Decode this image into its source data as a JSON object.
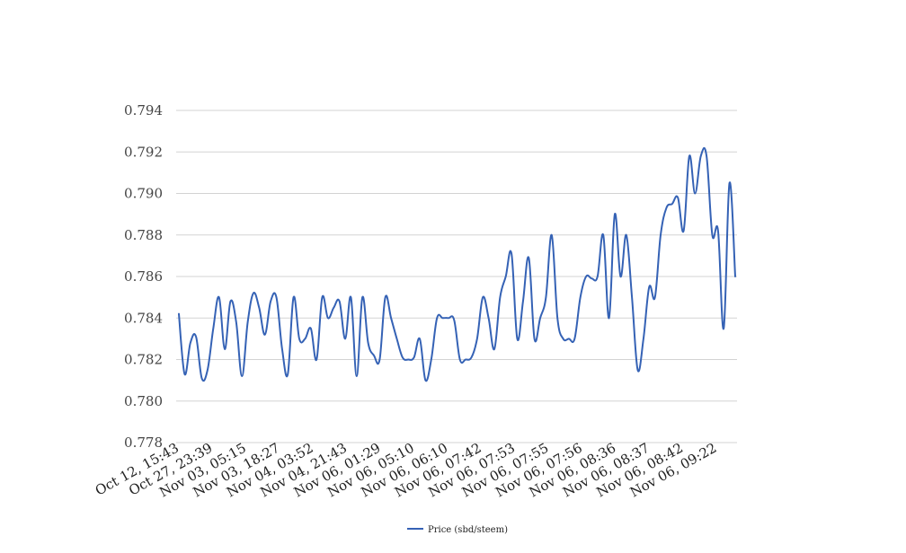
{
  "chart_data": {
    "type": "line",
    "title": "",
    "xlabel": "",
    "ylabel": "",
    "ylim": [
      0.778,
      0.794
    ],
    "yticks": [
      "0.778",
      "0.780",
      "0.782",
      "0.784",
      "0.786",
      "0.788",
      "0.790",
      "0.792",
      "0.794"
    ],
    "grid": true,
    "legend_position": "bottom",
    "x_tick_labels": [
      "Oct 12, 15:43",
      "Oct 27, 23:39",
      "Nov 03, 05:15",
      "Nov 03, 18:27",
      "Nov 04, 03:52",
      "Nov 04, 21:43",
      "Nov 06, 01:29",
      "Nov 06, 05:10",
      "Nov 06, 06:10",
      "Nov 06, 07:42",
      "Nov 06, 07:53",
      "Nov 06, 07:55",
      "Nov 06, 07:56",
      "Nov 06, 08:36",
      "Nov 06, 08:37",
      "Nov 06, 08:42",
      "Nov 06, 09:22"
    ],
    "series": [
      {
        "name": "Price (sbd/steem)",
        "color": "#3562b5",
        "values": [
          0.7842,
          0.7813,
          0.7828,
          0.7831,
          0.7811,
          0.7815,
          0.7835,
          0.785,
          0.7825,
          0.7848,
          0.7838,
          0.7812,
          0.7838,
          0.7852,
          0.7845,
          0.7832,
          0.7848,
          0.785,
          0.7825,
          0.7813,
          0.785,
          0.783,
          0.783,
          0.7835,
          0.782,
          0.785,
          0.784,
          0.7845,
          0.7848,
          0.783,
          0.785,
          0.7812,
          0.785,
          0.7828,
          0.7822,
          0.782,
          0.785,
          0.784,
          0.783,
          0.7821,
          0.782,
          0.7821,
          0.783,
          0.781,
          0.782,
          0.784,
          0.784,
          0.784,
          0.7839,
          0.782,
          0.782,
          0.7821,
          0.783,
          0.785,
          0.784,
          0.7825,
          0.785,
          0.786,
          0.7871,
          0.783,
          0.7848,
          0.7869,
          0.783,
          0.784,
          0.785,
          0.788,
          0.784,
          0.783,
          0.783,
          0.783,
          0.785,
          0.786,
          0.7859,
          0.786,
          0.788,
          0.784,
          0.789,
          0.786,
          0.788,
          0.785,
          0.7815,
          0.783,
          0.7855,
          0.785,
          0.788,
          0.7893,
          0.7895,
          0.7898,
          0.7882,
          0.7918,
          0.79,
          0.7918,
          0.7918,
          0.788,
          0.7882,
          0.7835,
          0.7905,
          0.786
        ]
      }
    ]
  }
}
